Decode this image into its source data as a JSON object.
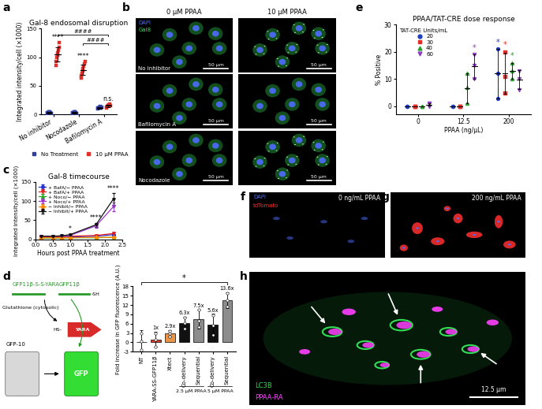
{
  "panel_letters": [
    "a",
    "b",
    "c",
    "d",
    "e",
    "f",
    "g",
    "h"
  ],
  "chart_data": [
    {
      "type": "scatter",
      "title": "Gal-8 endosomal disruption",
      "y_label": "Integrated intensity/cell (×1000)",
      "categories": [
        "No inhibitor",
        "Nocodazole",
        "Bafilomycin A"
      ],
      "ylim": [
        0,
        150
      ],
      "yticks": [
        0,
        50,
        100,
        150
      ],
      "legend": "lower center",
      "series": [
        {
          "name": "No Treatment",
          "color": "#2f3f9f",
          "marker": "square",
          "points": [
            [
              2,
              3,
              3,
              4,
              4,
              5,
              3,
              2
            ],
            [
              2,
              3,
              3,
              4,
              5,
              4,
              3,
              2
            ],
            [
              10,
              11,
              12,
              13,
              14,
              12,
              11,
              13
            ]
          ],
          "means": [
            3.3,
            3.3,
            12
          ],
          "errors": [
            1,
            1,
            1.3
          ]
        },
        {
          "name": "10 µM PPAA",
          "color": "#e0302a",
          "marker": "square",
          "points": [
            [
              86,
              92,
              100,
              104,
              108,
              112,
              118,
              125
            ],
            [
              64,
              68,
              72,
              76,
              80,
              84,
              88,
              92
            ],
            [
              12,
              13,
              14,
              15,
              16,
              17,
              18,
              15
            ]
          ],
          "means": [
            105,
            78,
            15
          ],
          "errors": [
            13,
            9,
            2
          ]
        }
      ],
      "annotations": [
        {
          "text": "****",
          "series": 1,
          "category": 0
        },
        {
          "text": "****",
          "series": 1,
          "category": 1
        },
        {
          "text": "n.s.",
          "series": 1,
          "category": 2
        },
        {
          "text": "####",
          "from": 0,
          "to": 2
        },
        {
          "text": "####",
          "from": 1,
          "to": 2
        }
      ]
    },
    {
      "type": "line",
      "title": "Gal-8 timecourse",
      "x_label": "Hours post PPAA treatment",
      "y_label": "Integrated intensity/cell (×1000)",
      "x": [
        0.17,
        0.5,
        0.75,
        1.0,
        1.75,
        2.25
      ],
      "xlim": [
        0,
        2.5
      ],
      "xticks": [
        {
          "value": 0,
          "label": "0.0"
        },
        {
          "value": 0.5,
          "label": "0.5"
        },
        {
          "value": 1,
          "label": "1.0"
        },
        {
          "value": 1.5,
          "label": "1.5"
        },
        {
          "value": 2,
          "label": "2.0"
        },
        {
          "value": 2.5,
          "label": "2.5"
        }
      ],
      "ylim": [
        0,
        150
      ],
      "yticks": [
        0,
        50,
        100,
        150
      ],
      "legend": "upper left",
      "series": [
        {
          "name": "+ BafA/− PPAA",
          "color": "#1f2fd0",
          "marker": "circle",
          "values": [
            5,
            5,
            5,
            6,
            8,
            12
          ],
          "errors": [
            1,
            1,
            1,
            1,
            2,
            2
          ]
        },
        {
          "name": "+ BafA/+ PPAA",
          "color": "#e02020",
          "marker": "triangle_down",
          "values": [
            6,
            6,
            7,
            8,
            10,
            15
          ],
          "errors": [
            1,
            1,
            1,
            1,
            2,
            3
          ]
        },
        {
          "name": "+ Noco/− PPAA",
          "color": "#22aa22",
          "marker": "triangle_up",
          "values": [
            3,
            3,
            3,
            4,
            4,
            5
          ],
          "errors": [
            1,
            1,
            1,
            1,
            1,
            1
          ]
        },
        {
          "name": "+ Noco/+ PPAA",
          "color": "#9933cc",
          "marker": "triangle_down",
          "values": [
            8,
            8,
            8,
            10,
            35,
            85
          ],
          "errors": [
            1,
            1,
            1,
            2,
            5,
            12
          ]
        },
        {
          "name": "− Inhibit/− PPAA",
          "color": "#ff8800",
          "marker": "diamond",
          "values": [
            4,
            4,
            4,
            4,
            5,
            5
          ],
          "errors": [
            1,
            1,
            1,
            1,
            1,
            1
          ]
        },
        {
          "name": "− Inhibit/+ PPAA",
          "color": "#111111",
          "marker": "triangle_down",
          "values": [
            8,
            8,
            9,
            12,
            38,
            105
          ],
          "errors": [
            1,
            1,
            1,
            2,
            5,
            15
          ]
        }
      ],
      "annotations": [
        {
          "text": "*",
          "x": 1.0
        },
        {
          "text": "****",
          "x": 1.75
        },
        {
          "text": "****",
          "x": 2.25
        }
      ]
    },
    {
      "type": "bar",
      "y_label": "Fold increase in GFP fluorescence (A.U.)",
      "categories": [
        "NT",
        "YARA-SS-GFP11β",
        "Xtect",
        "Co-delivery",
        "Sequential",
        "Co-delivery",
        "Sequential"
      ],
      "groups": [
        {
          "label": "2.5 µM PPAA",
          "from": 3,
          "to": 4
        },
        {
          "label": "5 µM PPAA",
          "from": 5,
          "to": 6
        }
      ],
      "values": [
        0,
        1,
        2.9,
        6.3,
        7.5,
        5.6,
        13.6
      ],
      "value_labels": [
        null,
        "1x",
        "2.9x",
        "6.3x",
        "7.5x",
        "5.6x",
        "13.6x"
      ],
      "data_labels": true,
      "errors": [
        4,
        2.5,
        1,
        2,
        3,
        3.5,
        2.5
      ],
      "points": [
        [
          -2.5,
          0.5,
          2.8
        ],
        [
          -1.5,
          1,
          3
        ],
        [
          2,
          3,
          3.7
        ],
        [
          4.5,
          6.3,
          8
        ],
        [
          5,
          7,
          10.5
        ],
        [
          2.5,
          5.5,
          8.8
        ],
        [
          11.5,
          13.5,
          15.8
        ]
      ],
      "colors": [
        "#ffffff",
        "#d93a2b",
        "#e8954a",
        "#111111",
        "#8c8c8c",
        "#111111",
        "#8c8c8c"
      ],
      "ylim": [
        -3,
        18
      ],
      "yticks": [
        -3,
        0,
        3,
        6,
        9,
        12,
        15,
        18
      ],
      "annotations": [
        {
          "text": "*",
          "from": 0,
          "to": 6
        }
      ]
    },
    {
      "type": "scatter",
      "title": "PPAA/TAT-CRE dose response",
      "x_label": "PPAA (ng/µL)",
      "y_label": "% Positive",
      "categories": [
        "0",
        "12.5",
        "200"
      ],
      "ylim": [
        -3,
        30
      ],
      "yticks": [
        0,
        10,
        20,
        30
      ],
      "legend": "upper left",
      "legend_title": "TAT-CRE Units/mL",
      "series": [
        {
          "name": "20",
          "color": "#1f3fbf",
          "marker": "circle",
          "points": [
            [
              0,
              0,
              0
            ],
            [
              0,
              0,
              0
            ],
            [
              3,
              12,
              21
            ]
          ],
          "means": [
            0,
            0,
            12
          ],
          "errors": [
            0,
            0,
            9
          ]
        },
        {
          "name": "30",
          "color": "#e0302a",
          "marker": "square",
          "points": [
            [
              0,
              0,
              0
            ],
            [
              0,
              0,
              0
            ],
            [
              5,
              11,
              20
            ]
          ],
          "means": [
            0,
            0,
            12
          ],
          "errors": [
            0,
            0,
            7.5
          ]
        },
        {
          "name": "40",
          "color": "#2ca02c",
          "marker": "triangle_up",
          "points": [
            [
              0,
              0,
              0
            ],
            [
              1,
              7,
              12
            ],
            [
              10,
              13,
              16
            ]
          ],
          "means": [
            0,
            6.7,
            13
          ],
          "errors": [
            0,
            5.5,
            3
          ]
        },
        {
          "name": "60",
          "color": "#8e3fbf",
          "marker": "triangle_down",
          "points": [
            [
              0,
              1,
              1
            ],
            [
              10,
              15,
              19
            ],
            [
              6,
              10,
              13
            ]
          ],
          "means": [
            0.7,
            14.7,
            9.7
          ],
          "errors": [
            0.5,
            4.5,
            3.5
          ]
        }
      ],
      "annotations": [
        {
          "text": "*",
          "series": "60",
          "category": 1
        },
        {
          "text": "*",
          "series": "20",
          "category": 2
        },
        {
          "text": "*",
          "series": "30",
          "category": 2
        },
        {
          "text": "*",
          "series": "40",
          "category": 2
        }
      ]
    }
  ],
  "images": {
    "b": {
      "column_titles": [
        "0 µM PPAA",
        "10 µM PPAA"
      ],
      "row_labels": [
        "No inhibitor",
        "Bafilomycin A",
        "Nocodazole"
      ],
      "channels": [
        {
          "name": "DAPI",
          "color": "#4d6dff"
        },
        {
          "name": "Gal8",
          "color": "#39e05a"
        }
      ],
      "scale_bar": "50 µm"
    },
    "f": {
      "title": "0 ng/mL PPAA",
      "channels": [
        {
          "name": "DAPI",
          "color": "#4d6dff"
        },
        {
          "name": "tdTomato",
          "color": "#ff3030"
        }
      ]
    },
    "g": {
      "title": "200 ng/mL PPAA"
    },
    "h": {
      "channels": [
        {
          "name": "LC3B",
          "color": "#33dd55"
        },
        {
          "name": "PPAA-RA",
          "color": "#ff40ff"
        }
      ],
      "scale_bar": "12.5 µm"
    }
  },
  "diagram": {
    "probe": "GFP11β-S-S-YARA",
    "cleaved": "GFP11β",
    "thiol": "-SH",
    "glutathione": "Glutathione (cytosolic)",
    "released": "HS-",
    "peptide": "YARA",
    "gfp10": "GFP-10",
    "product": "GFP"
  }
}
